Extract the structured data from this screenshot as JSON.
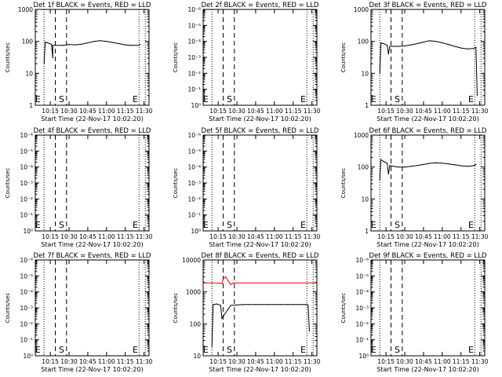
{
  "colors": {
    "background": "#ffffff",
    "events": "#000000",
    "lld": "#ff0000"
  },
  "shared": {
    "xlabel": "Start Time (22-Nov-17 10:02:20)",
    "ylabel": "Counts/sec",
    "xticks": [
      "10:15",
      "10:30",
      "10:45",
      "11:00",
      "11:15",
      "11:30"
    ]
  },
  "chart_data": [
    {
      "type": "line",
      "title": "Det 1f BLACK = Events, RED = LLD",
      "ylabel": "Counts/sec",
      "xlabel": "Start Time (22-Nov-17 10:02:20)",
      "y_scale": "log",
      "yticks": [
        "1",
        "10",
        "100",
        "1000"
      ],
      "ylim": [
        1,
        1000
      ],
      "markers": [
        {
          "label": "E",
          "x": "10:05"
        },
        {
          "label": "S",
          "x": "10:24"
        },
        {
          "label": "E",
          "x": "11:23"
        }
      ],
      "series": [
        {
          "name": "Events",
          "x": [
            "10:10",
            "10:11",
            "10:13",
            "10:16",
            "10:17",
            "10:17",
            "10:25",
            "10:30",
            "10:35",
            "10:40",
            "10:45",
            "10:50",
            "10:55",
            "11:00",
            "11:05",
            "11:10",
            "11:15",
            "11:20",
            "11:25",
            "11:27"
          ],
          "values": [
            20,
            95,
            90,
            80,
            30,
            75,
            75,
            80,
            78,
            82,
            90,
            100,
            105,
            100,
            92,
            85,
            78,
            75,
            75,
            80
          ]
        }
      ]
    },
    {
      "type": "line",
      "title": "Det 2f BLACK = Events, RED = LLD",
      "ylabel": "Counts/sec",
      "xlabel": "Start Time (22-Nov-17 10:02:20)",
      "y_scale": "log",
      "yticks": [
        "10⁰",
        "10⁻¹",
        "10⁻²",
        "10⁻³",
        "10⁻⁴",
        "10⁻⁵",
        "10⁻⁶"
      ],
      "markers": [
        {
          "label": "E",
          "x": "10:05"
        },
        {
          "label": "S",
          "x": "10:24"
        },
        {
          "label": "E",
          "x": "11:23"
        }
      ],
      "series": []
    },
    {
      "type": "line",
      "title": "Det 3f BLACK = Events, RED = LLD",
      "ylabel": "Counts/sec",
      "xlabel": "Start Time (22-Nov-17 10:02:20)",
      "y_scale": "log",
      "yticks": [
        "1",
        "10",
        "100",
        "1000"
      ],
      "ylim": [
        1,
        1000
      ],
      "markers": [
        {
          "label": "E",
          "x": "10:05"
        },
        {
          "label": "S",
          "x": "10:24"
        },
        {
          "label": "E",
          "x": "11:23"
        }
      ],
      "series": [
        {
          "name": "Events",
          "x": [
            "10:10",
            "10:11",
            "10:13",
            "10:16",
            "10:17",
            "10:18",
            "10:25",
            "10:30",
            "10:35",
            "10:40",
            "10:45",
            "10:50",
            "10:55",
            "11:00",
            "11:05",
            "11:10",
            "11:15",
            "11:20",
            "11:25",
            "11:27",
            "11:28"
          ],
          "values": [
            10,
            90,
            85,
            75,
            40,
            70,
            70,
            72,
            78,
            85,
            95,
            105,
            100,
            90,
            80,
            70,
            62,
            58,
            60,
            65,
            2
          ]
        }
      ]
    },
    {
      "type": "line",
      "title": "Det 4f BLACK = Events, RED = LLD",
      "ylabel": "Counts/sec",
      "xlabel": "Start Time (22-Nov-17 10:02:20)",
      "y_scale": "log",
      "yticks": [
        "10⁰",
        "10⁻¹",
        "10⁻²",
        "10⁻³",
        "10⁻⁴",
        "10⁻⁵",
        "10⁻⁶"
      ],
      "markers": [
        {
          "label": "E",
          "x": "10:05"
        },
        {
          "label": "S",
          "x": "10:24"
        },
        {
          "label": "E",
          "x": "11:23"
        }
      ],
      "series": []
    },
    {
      "type": "line",
      "title": "Det 5f BLACK = Events, RED = LLD",
      "ylabel": "Counts/sec",
      "xlabel": "Start Time (22-Nov-17 10:02:20)",
      "y_scale": "log",
      "yticks": [
        "10⁰",
        "10⁻¹",
        "10⁻²",
        "10⁻³",
        "10⁻⁴",
        "10⁻⁵",
        "10⁻⁶"
      ],
      "markers": [
        {
          "label": "E",
          "x": "10:05"
        },
        {
          "label": "S",
          "x": "10:24"
        },
        {
          "label": "E",
          "x": "11:23"
        }
      ],
      "series": []
    },
    {
      "type": "line",
      "title": "Det 6f BLACK = Events, RED = LLD",
      "ylabel": "Counts/sec",
      "xlabel": "Start Time (22-Nov-17 10:02:20)",
      "y_scale": "log",
      "yticks": [
        "1",
        "10",
        "100",
        "1000"
      ],
      "ylim": [
        1,
        1000
      ],
      "markers": [
        {
          "label": "E",
          "x": "10:05"
        },
        {
          "label": "S",
          "x": "10:24"
        },
        {
          "label": "E",
          "x": "11:23"
        }
      ],
      "series": [
        {
          "name": "Events",
          "x": [
            "10:10",
            "10:11",
            "10:13",
            "10:16",
            "10:17",
            "10:18",
            "10:25",
            "10:30",
            "10:35",
            "10:40",
            "10:45",
            "10:50",
            "10:55",
            "11:00",
            "11:05",
            "11:10",
            "11:15",
            "11:20",
            "11:25",
            "11:27"
          ],
          "values": [
            40,
            170,
            150,
            130,
            60,
            110,
            100,
            100,
            105,
            112,
            120,
            130,
            135,
            132,
            125,
            118,
            110,
            105,
            110,
            120
          ]
        }
      ]
    },
    {
      "type": "line",
      "title": "Det 7f BLACK = Events, RED = LLD",
      "ylabel": "Counts/sec",
      "xlabel": "Start Time (22-Nov-17 10:02:20)",
      "y_scale": "log",
      "yticks": [
        "10⁰",
        "10⁻¹",
        "10⁻²",
        "10⁻³",
        "10⁻⁴",
        "10⁻⁵",
        "10⁻⁶"
      ],
      "markers": [
        {
          "label": "E",
          "x": "10:05"
        },
        {
          "label": "S",
          "x": "10:24"
        },
        {
          "label": "E",
          "x": "11:23"
        }
      ],
      "series": []
    },
    {
      "type": "line",
      "title": "Det 8f BLACK = Events, RED = LLD",
      "ylabel": "Counts/sec",
      "xlabel": "Start Time (22-Nov-17 10:02:20)",
      "y_scale": "log",
      "yticks": [
        "10",
        "100",
        "1000",
        "10000"
      ],
      "ylim": [
        10,
        10000
      ],
      "markers": [
        {
          "label": "E",
          "x": "10:05"
        },
        {
          "label": "S",
          "x": "10:24"
        },
        {
          "label": "E",
          "x": "11:23"
        }
      ],
      "series": [
        {
          "name": "Events",
          "x": [
            "10:10",
            "10:11",
            "10:14",
            "10:17",
            "10:18",
            "10:25",
            "10:30",
            "10:35",
            "10:40",
            "10:45",
            "10:50",
            "10:55",
            "11:00",
            "11:05",
            "11:10",
            "11:15",
            "11:20",
            "11:25",
            "11:27",
            "11:28"
          ],
          "values": [
            20,
            400,
            420,
            380,
            150,
            380,
            390,
            400,
            400,
            400,
            400,
            400,
            400,
            400,
            400,
            400,
            400,
            400,
            390,
            60
          ]
        },
        {
          "name": "LLD",
          "x": [
            "10:03",
            "10:10",
            "10:15",
            "10:18",
            "10:19",
            "10:21",
            "10:23",
            "10:25",
            "10:27",
            "10:30",
            "10:35",
            "10:45",
            "11:00",
            "11:15",
            "11:30",
            "11:34"
          ],
          "values": [
            1900,
            1900,
            1900,
            1800,
            2500,
            3000,
            2200,
            1700,
            1900,
            1900,
            1900,
            1900,
            1900,
            1900,
            1900,
            1900
          ]
        }
      ]
    },
    {
      "type": "line",
      "title": "Det 9f BLACK = Events, RED = LLD",
      "ylabel": "Counts/sec",
      "xlabel": "Start Time (22-Nov-17 10:02:20)",
      "y_scale": "log",
      "yticks": [
        "10⁰",
        "10⁻¹",
        "10⁻²",
        "10⁻³",
        "10⁻⁴",
        "10⁻⁵",
        "10⁻⁶"
      ],
      "markers": [
        {
          "label": "E",
          "x": "10:05"
        },
        {
          "label": "S",
          "x": "10:24"
        },
        {
          "label": "E",
          "x": "11:23"
        }
      ],
      "series": []
    }
  ]
}
